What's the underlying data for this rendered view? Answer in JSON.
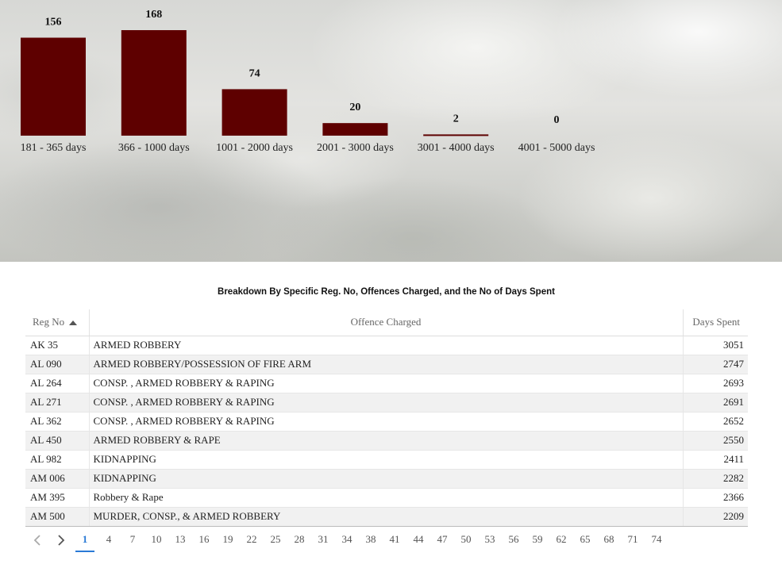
{
  "chart_data": {
    "type": "bar",
    "categories": [
      "181 - 365 days",
      "366 - 1000 days",
      "1001 - 2000 days",
      "2001 - 3000 days",
      "3001 - 4000 days",
      "4001 - 5000 days"
    ],
    "values": [
      156,
      168,
      74,
      20,
      2,
      0
    ],
    "bar_color": "#5e0000",
    "ylim": [
      0,
      168
    ],
    "grid": false
  },
  "table": {
    "title": "Breakdown By Specific Reg. No, Offences Charged, and the No of Days Spent",
    "headers": {
      "reg_no": "Reg No",
      "offence": "Offence Charged",
      "days": "Days Spent"
    },
    "sort_icon": "sort-ascending-icon",
    "rows": [
      {
        "reg_no": "AK 35",
        "offence": "ARMED ROBBERY",
        "days": "3051"
      },
      {
        "reg_no": "AL 090",
        "offence": "ARMED ROBBERY/POSSESSION OF FIRE ARM",
        "days": "2747"
      },
      {
        "reg_no": "AL 264",
        "offence": "CONSP. , ARMED ROBBERY & RAPING",
        "days": "2693"
      },
      {
        "reg_no": "AL 271",
        "offence": "CONSP. , ARMED ROBBERY & RAPING",
        "days": "2691"
      },
      {
        "reg_no": "AL 362",
        "offence": "CONSP. , ARMED ROBBERY & RAPING",
        "days": "2652"
      },
      {
        "reg_no": "AL 450",
        "offence": "ARMED ROBBERY & RAPE",
        "days": "2550"
      },
      {
        "reg_no": "AL 982",
        "offence": "KIDNAPPING",
        "days": "2411"
      },
      {
        "reg_no": "AM 006",
        "offence": "KIDNAPPING",
        "days": "2282"
      },
      {
        "reg_no": "AM 395",
        "offence": "Robbery & Rape",
        "days": "2366"
      },
      {
        "reg_no": "AM 500",
        "offence": "MURDER, CONSP., & ARMED ROBBERY",
        "days": "2209"
      }
    ]
  },
  "pagination": {
    "prev_icon": "chevron-left-icon",
    "next_icon": "chevron-right-icon",
    "current": "1",
    "pages": [
      "1",
      "4",
      "7",
      "10",
      "13",
      "16",
      "19",
      "22",
      "25",
      "28",
      "31",
      "34",
      "38",
      "41",
      "44",
      "47",
      "50",
      "53",
      "56",
      "59",
      "62",
      "65",
      "68",
      "71",
      "74"
    ],
    "active_color": "#2a7ad6"
  }
}
